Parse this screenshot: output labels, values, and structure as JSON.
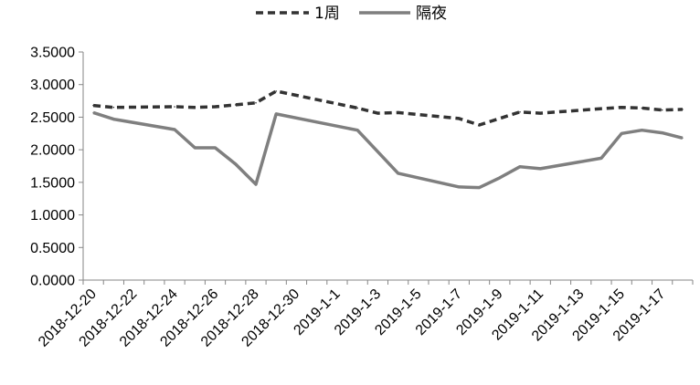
{
  "chart_data": {
    "type": "line",
    "title": "",
    "xlabel": "",
    "ylabel": "",
    "ylim": [
      0,
      3.5
    ],
    "y_ticks": [
      "0.0000",
      "0.5000",
      "1.0000",
      "1.5000",
      "2.0000",
      "2.5000",
      "3.0000",
      "3.5000"
    ],
    "x_ticks": [
      "2018-12-20",
      "2018-12-22",
      "2018-12-24",
      "2018-12-26",
      "2018-12-28",
      "2018-12-30",
      "2019-1-1",
      "2019-1-3",
      "2019-1-5",
      "2019-1-7",
      "2019-1-9",
      "2019-1-11",
      "2019-1-13",
      "2019-1-15",
      "2019-1-17"
    ],
    "legend_position": "top-center",
    "grid": false,
    "series": [
      {
        "name": "1周",
        "style": "dashed",
        "color": "#333333",
        "points": [
          [
            "2018-12-20",
            2.68
          ],
          [
            "2018-12-21",
            2.65
          ],
          [
            "2018-12-24",
            2.66
          ],
          [
            "2018-12-25",
            2.65
          ],
          [
            "2018-12-26",
            2.66
          ],
          [
            "2018-12-27",
            2.69
          ],
          [
            "2018-12-28",
            2.72
          ],
          [
            "2018-12-29",
            2.9
          ],
          [
            "2019-1-2",
            2.64
          ],
          [
            "2019-1-3",
            2.56
          ],
          [
            "2019-1-4",
            2.57
          ],
          [
            "2019-1-7",
            2.48
          ],
          [
            "2019-1-8",
            2.38
          ],
          [
            "2019-1-10",
            2.58
          ],
          [
            "2019-1-11",
            2.56
          ],
          [
            "2019-1-14",
            2.63
          ],
          [
            "2019-1-15",
            2.65
          ],
          [
            "2019-1-16",
            2.64
          ],
          [
            "2019-1-17",
            2.61
          ],
          [
            "2019-1-18",
            2.62
          ]
        ]
      },
      {
        "name": "隔夜",
        "style": "solid",
        "color": "#7f7f7f",
        "points": [
          [
            "2018-12-20",
            2.57
          ],
          [
            "2018-12-21",
            2.47
          ],
          [
            "2018-12-24",
            2.31
          ],
          [
            "2018-12-25",
            2.03
          ],
          [
            "2018-12-26",
            2.03
          ],
          [
            "2018-12-27",
            1.78
          ],
          [
            "2018-12-28",
            1.47
          ],
          [
            "2018-12-29",
            2.55
          ],
          [
            "2019-1-2",
            2.3
          ],
          [
            "2019-1-3",
            1.97
          ],
          [
            "2019-1-4",
            1.64
          ],
          [
            "2019-1-7",
            1.43
          ],
          [
            "2019-1-8",
            1.42
          ],
          [
            "2019-1-9",
            1.57
          ],
          [
            "2019-1-10",
            1.74
          ],
          [
            "2019-1-11",
            1.71
          ],
          [
            "2019-1-14",
            1.87
          ],
          [
            "2019-1-15",
            2.25
          ],
          [
            "2019-1-16",
            2.3
          ],
          [
            "2019-1-17",
            2.26
          ],
          [
            "2019-1-18",
            2.18
          ]
        ]
      }
    ]
  }
}
